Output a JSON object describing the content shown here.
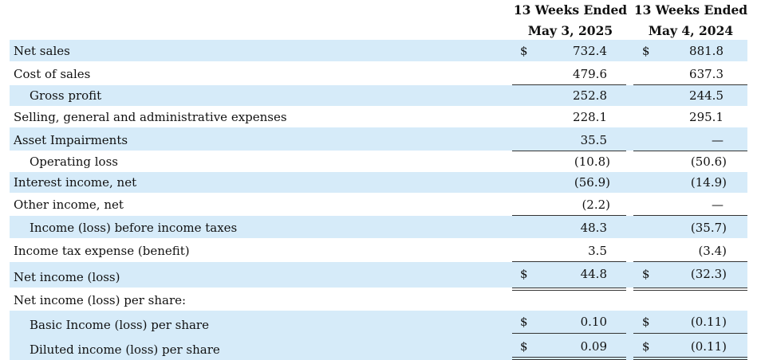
{
  "columns": [
    {
      "line1": "13 Weeks Ended",
      "line2": "May 3, 2025"
    },
    {
      "line1": "13 Weeks Ended",
      "line2": "May 4, 2024"
    }
  ],
  "currency_symbol": "$",
  "shade_color": "#d6ebf9",
  "rows": [
    {
      "label": "Net sales",
      "c1": "732.4",
      "c2": "881.8"
    },
    {
      "label": "Cost of sales",
      "c1": "479.6",
      "c2": "637.3"
    },
    {
      "label": "Gross profit",
      "c1": "252.8",
      "c2": "244.5"
    },
    {
      "label": "Selling, general and administrative expenses",
      "c1": "228.1",
      "c2": "295.1"
    },
    {
      "label": "Asset Impairments",
      "c1": "35.5",
      "c2": "—"
    },
    {
      "label": "Operating loss",
      "c1": "(10.8)",
      "c2": "(50.6)"
    },
    {
      "label": "Interest income, net",
      "c1": "(56.9)",
      "c2": "(14.9)"
    },
    {
      "label": "Other income, net",
      "c1": "(2.2)",
      "c2": "—"
    },
    {
      "label": "Income (loss) before income taxes",
      "c1": "48.3",
      "c2": "(35.7)"
    },
    {
      "label": "Income tax expense (benefit)",
      "c1": "3.5",
      "c2": "(3.4)"
    },
    {
      "label": "Net income (loss)",
      "c1": "44.8",
      "c2": "(32.3)"
    },
    {
      "label": "Net income (loss) per share:",
      "c1": "",
      "c2": ""
    },
    {
      "label": "Basic Income (loss) per share",
      "c1": "0.10",
      "c2": "(0.11)"
    },
    {
      "label": "Diluted income (loss) per share",
      "c1": "0.09",
      "c2": "(0.11)"
    }
  ]
}
